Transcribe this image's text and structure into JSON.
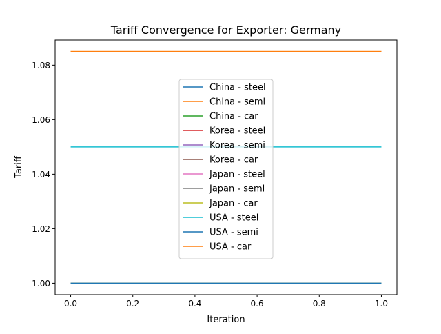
{
  "chart_data": {
    "type": "line",
    "title": "Tariff Convergence for Exporter: Germany",
    "xlabel": "Iteration",
    "ylabel": "Tariff",
    "xlim": [
      -0.05,
      1.05
    ],
    "ylim": [
      0.9958,
      1.0892
    ],
    "x_ticks": [
      0.0,
      0.2,
      0.4,
      0.6,
      0.8,
      1.0
    ],
    "x_tick_labels": [
      "0.0",
      "0.2",
      "0.4",
      "0.6",
      "0.8",
      "1.0"
    ],
    "y_ticks": [
      1.0,
      1.02,
      1.04,
      1.06,
      1.08
    ],
    "y_tick_labels": [
      "1.00",
      "1.02",
      "1.04",
      "1.06",
      "1.08"
    ],
    "grid": false,
    "legend_position": "center",
    "x": [
      0.0,
      1.0
    ],
    "series": [
      {
        "name": "China - steel",
        "color": "#1f77b4",
        "values": [
          1.0,
          1.0
        ]
      },
      {
        "name": "China - semi",
        "color": "#ff7f0e",
        "values": [
          1.085,
          1.085
        ]
      },
      {
        "name": "China - car",
        "color": "#2ca02c",
        "values": [
          1.0,
          1.0
        ]
      },
      {
        "name": "Korea - steel",
        "color": "#d62728",
        "values": [
          1.0,
          1.0
        ]
      },
      {
        "name": "Korea - semi",
        "color": "#9467bd",
        "values": [
          1.0,
          1.0
        ]
      },
      {
        "name": "Korea - car",
        "color": "#8c564b",
        "values": [
          1.0,
          1.0
        ]
      },
      {
        "name": "Japan - steel",
        "color": "#e377c2",
        "values": [
          1.0,
          1.0
        ]
      },
      {
        "name": "Japan - semi",
        "color": "#7f7f7f",
        "values": [
          1.0,
          1.0
        ]
      },
      {
        "name": "Japan - car",
        "color": "#bcbd22",
        "values": [
          1.0,
          1.0
        ]
      },
      {
        "name": "USA - steel",
        "color": "#17becf",
        "values": [
          1.05,
          1.05
        ]
      },
      {
        "name": "USA - semi",
        "color": "#1f77b4",
        "values": [
          1.0,
          1.0
        ]
      },
      {
        "name": "USA - car",
        "color": "#ff7f0e",
        "values": [
          1.085,
          1.085
        ]
      }
    ]
  }
}
